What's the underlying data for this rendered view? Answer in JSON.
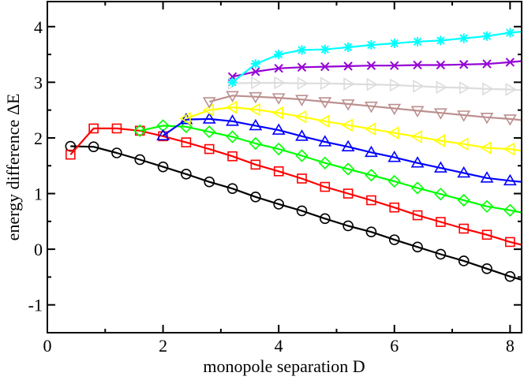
{
  "chart_data": {
    "type": "line",
    "title": "",
    "xlabel": "monopole separation D",
    "ylabel": "energy difference ΔE",
    "xlim": [
      0,
      8.2
    ],
    "ylim": [
      -1.5,
      4.45
    ],
    "xticks": [
      0,
      2,
      4,
      6,
      8
    ],
    "yticks": [
      -1,
      0,
      1,
      2,
      3,
      4
    ],
    "xtick_labels": [
      "0",
      "2",
      "4",
      "6",
      "8"
    ],
    "ytick_labels": [
      "-1",
      "0",
      "1",
      "2",
      "3",
      "4"
    ],
    "grid": false,
    "legend": "none",
    "series": [
      {
        "color": "#000000",
        "marker": "circle",
        "marker_style": "open",
        "x": [
          0.4,
          0.8,
          1.2,
          1.6,
          2.0,
          2.4,
          2.8,
          3.2,
          3.6,
          4.0,
          4.4,
          4.8,
          5.2,
          5.6,
          6.0,
          6.4,
          6.8,
          7.2,
          7.6,
          8.0,
          8.2
        ],
        "y": [
          1.85,
          1.84,
          1.73,
          1.61,
          1.48,
          1.35,
          1.21,
          1.09,
          0.94,
          0.81,
          0.69,
          0.55,
          0.42,
          0.31,
          0.17,
          0.04,
          -0.09,
          -0.21,
          -0.35,
          -0.49,
          -0.55
        ]
      },
      {
        "color": "#ff0000",
        "marker": "square",
        "marker_style": "open",
        "x": [
          0.4,
          0.8,
          1.2,
          1.6,
          2.0,
          2.4,
          2.8,
          3.2,
          3.6,
          4.0,
          4.4,
          4.8,
          5.2,
          5.6,
          6.0,
          6.4,
          6.8,
          7.2,
          7.6,
          8.0,
          8.2
        ],
        "y": [
          1.7,
          2.17,
          2.17,
          2.13,
          2.03,
          1.92,
          1.8,
          1.67,
          1.52,
          1.4,
          1.27,
          1.12,
          1.0,
          0.88,
          0.75,
          0.61,
          0.49,
          0.37,
          0.26,
          0.13,
          0.08
        ]
      },
      {
        "color": "#00ff00",
        "marker": "diamond",
        "marker_style": "open",
        "x": [
          1.6,
          2.0,
          2.4,
          2.8,
          3.2,
          3.6,
          4.0,
          4.4,
          4.8,
          5.2,
          5.6,
          6.0,
          6.4,
          6.8,
          7.2,
          7.6,
          8.0,
          8.2
        ],
        "y": [
          2.13,
          2.22,
          2.2,
          2.11,
          2.02,
          1.9,
          1.8,
          1.68,
          1.55,
          1.44,
          1.33,
          1.22,
          1.1,
          0.99,
          0.88,
          0.77,
          0.7,
          0.66
        ]
      },
      {
        "color": "#0000ff",
        "marker": "triangle-up",
        "marker_style": "open",
        "x": [
          2.0,
          2.4,
          2.8,
          3.2,
          3.6,
          4.0,
          4.4,
          4.8,
          5.2,
          5.6,
          6.0,
          6.4,
          6.8,
          7.2,
          7.6,
          8.0,
          8.2
        ],
        "y": [
          2.04,
          2.33,
          2.34,
          2.3,
          2.22,
          2.14,
          2.03,
          1.93,
          1.84,
          1.74,
          1.65,
          1.55,
          1.46,
          1.37,
          1.28,
          1.23,
          1.21
        ]
      },
      {
        "color": "#ffff00",
        "marker": "triangle-left",
        "marker_style": "open",
        "x": [
          2.4,
          2.8,
          3.2,
          3.6,
          4.0,
          4.4,
          4.8,
          5.2,
          5.6,
          6.0,
          6.4,
          6.8,
          7.2,
          7.6,
          8.0,
          8.2
        ],
        "y": [
          2.35,
          2.5,
          2.55,
          2.51,
          2.45,
          2.38,
          2.3,
          2.23,
          2.16,
          2.09,
          2.02,
          1.95,
          1.89,
          1.82,
          1.8,
          1.77
        ]
      },
      {
        "color": "#bc8f8f",
        "marker": "triangle-down",
        "marker_style": "open",
        "x": [
          2.8,
          3.2,
          3.6,
          4.0,
          4.4,
          4.8,
          5.2,
          5.6,
          6.0,
          6.4,
          6.8,
          7.2,
          7.6,
          8.0,
          8.2
        ],
        "y": [
          2.65,
          2.76,
          2.74,
          2.72,
          2.69,
          2.65,
          2.61,
          2.57,
          2.53,
          2.49,
          2.45,
          2.41,
          2.37,
          2.34,
          2.32
        ]
      },
      {
        "color": "#dcdcdc",
        "marker": "triangle-right",
        "marker_style": "open",
        "x": [
          3.2,
          3.6,
          4.0,
          4.4,
          4.8,
          5.2,
          5.6,
          6.0,
          6.4,
          6.8,
          7.2,
          7.6,
          8.0,
          8.2
        ],
        "y": [
          2.98,
          2.99,
          2.99,
          2.98,
          2.98,
          2.97,
          2.96,
          2.95,
          2.93,
          2.91,
          2.9,
          2.88,
          2.87,
          2.86
        ]
      },
      {
        "color": "#9400d3",
        "marker": "x",
        "marker_style": "open",
        "x": [
          3.2,
          3.6,
          4.0,
          4.4,
          4.8,
          5.2,
          5.6,
          6.0,
          6.4,
          6.8,
          7.2,
          7.6,
          8.0,
          8.2
        ],
        "y": [
          3.1,
          3.19,
          3.25,
          3.27,
          3.28,
          3.29,
          3.3,
          3.3,
          3.31,
          3.31,
          3.32,
          3.33,
          3.36,
          3.38
        ]
      },
      {
        "color": "#00ffff",
        "marker": "asterisk",
        "marker_style": "open",
        "x": [
          3.2,
          3.6,
          4.0,
          4.4,
          4.8,
          5.2,
          5.6,
          6.0,
          6.4,
          6.8,
          7.2,
          7.6,
          8.0,
          8.2
        ],
        "y": [
          3.0,
          3.33,
          3.5,
          3.58,
          3.59,
          3.63,
          3.67,
          3.7,
          3.73,
          3.75,
          3.79,
          3.83,
          3.89,
          3.91
        ]
      }
    ]
  }
}
